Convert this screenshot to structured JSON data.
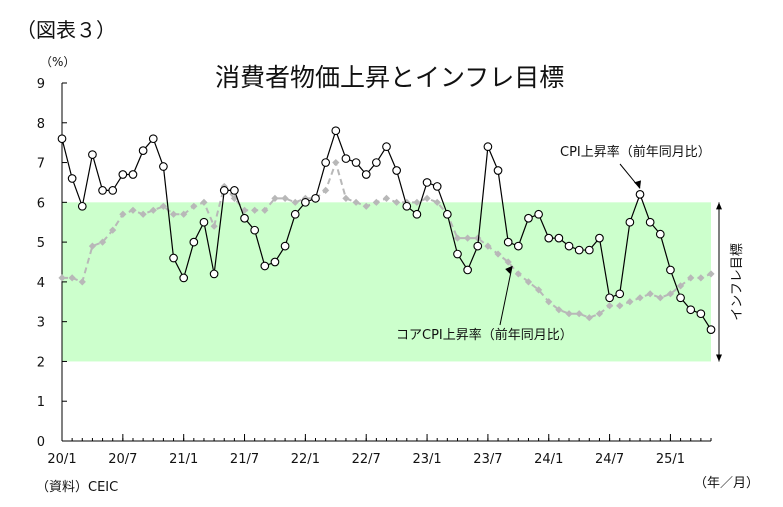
{
  "figure_label": "（図表３）",
  "source": "（資料）CEIC",
  "chart_data": {
    "type": "line",
    "title": "消費者物価上昇とインフレ目標",
    "yunit": "（%）",
    "xunit": "（年／月）",
    "ylim": [
      0,
      9
    ],
    "yticks": [
      0,
      1,
      2,
      3,
      4,
      5,
      6,
      7,
      8,
      9
    ],
    "x_tick_labels": [
      "20/1",
      "20/7",
      "21/1",
      "21/7",
      "22/1",
      "22/7",
      "23/1",
      "23/7",
      "24/1",
      "24/7",
      "25/1"
    ],
    "x_tick_index": [
      0,
      6,
      12,
      18,
      24,
      30,
      36,
      42,
      48,
      54,
      60
    ],
    "target_band": {
      "label": "インフレ目標",
      "low": 2,
      "high": 6,
      "color": "#ccffcc"
    },
    "series": [
      {
        "name": "CPI上昇率（前年同月比）",
        "color": "#000000",
        "marker": "circle",
        "values": [
          7.6,
          6.6,
          5.9,
          7.2,
          6.3,
          6.3,
          6.7,
          6.7,
          7.3,
          7.6,
          6.9,
          4.6,
          4.1,
          5.0,
          5.5,
          4.2,
          6.3,
          6.3,
          5.6,
          5.3,
          4.4,
          4.5,
          4.9,
          5.7,
          6.0,
          6.1,
          7.0,
          7.8,
          7.1,
          7.0,
          6.7,
          7.0,
          7.4,
          6.8,
          5.9,
          5.7,
          6.5,
          6.4,
          5.7,
          4.7,
          4.3,
          4.9,
          7.4,
          6.8,
          5.0,
          4.9,
          5.6,
          5.7,
          5.1,
          5.1,
          4.9,
          4.8,
          4.8,
          5.1,
          3.6,
          3.7,
          5.5,
          6.2,
          5.5,
          5.2,
          4.3,
          3.6,
          3.3,
          3.2,
          2.8
        ]
      },
      {
        "name": "コアCPI上昇率（前年同月比）",
        "color": "#b8b8b8",
        "marker": "diamond",
        "values": [
          4.1,
          4.1,
          4.0,
          4.9,
          5.0,
          5.3,
          5.7,
          5.8,
          5.7,
          5.8,
          5.9,
          5.7,
          5.7,
          5.9,
          6.0,
          5.4,
          6.4,
          6.1,
          5.8,
          5.8,
          5.8,
          6.1,
          6.1,
          6.0,
          6.1,
          6.1,
          6.3,
          7.0,
          6.1,
          6.0,
          5.9,
          6.0,
          6.1,
          6.0,
          6.0,
          6.0,
          6.1,
          6.0,
          5.7,
          5.1,
          5.1,
          5.1,
          4.9,
          4.7,
          4.5,
          4.2,
          4.0,
          3.8,
          3.5,
          3.3,
          3.2,
          3.2,
          3.1,
          3.2,
          3.4,
          3.4,
          3.5,
          3.6,
          3.7,
          3.6,
          3.7,
          3.9,
          4.1,
          4.1,
          4.2
        ]
      }
    ],
    "annotations": {
      "cpi_label": "CPI上昇率（前年同月比）",
      "core_label": "コアCPI上昇率（前年同月比）"
    }
  }
}
